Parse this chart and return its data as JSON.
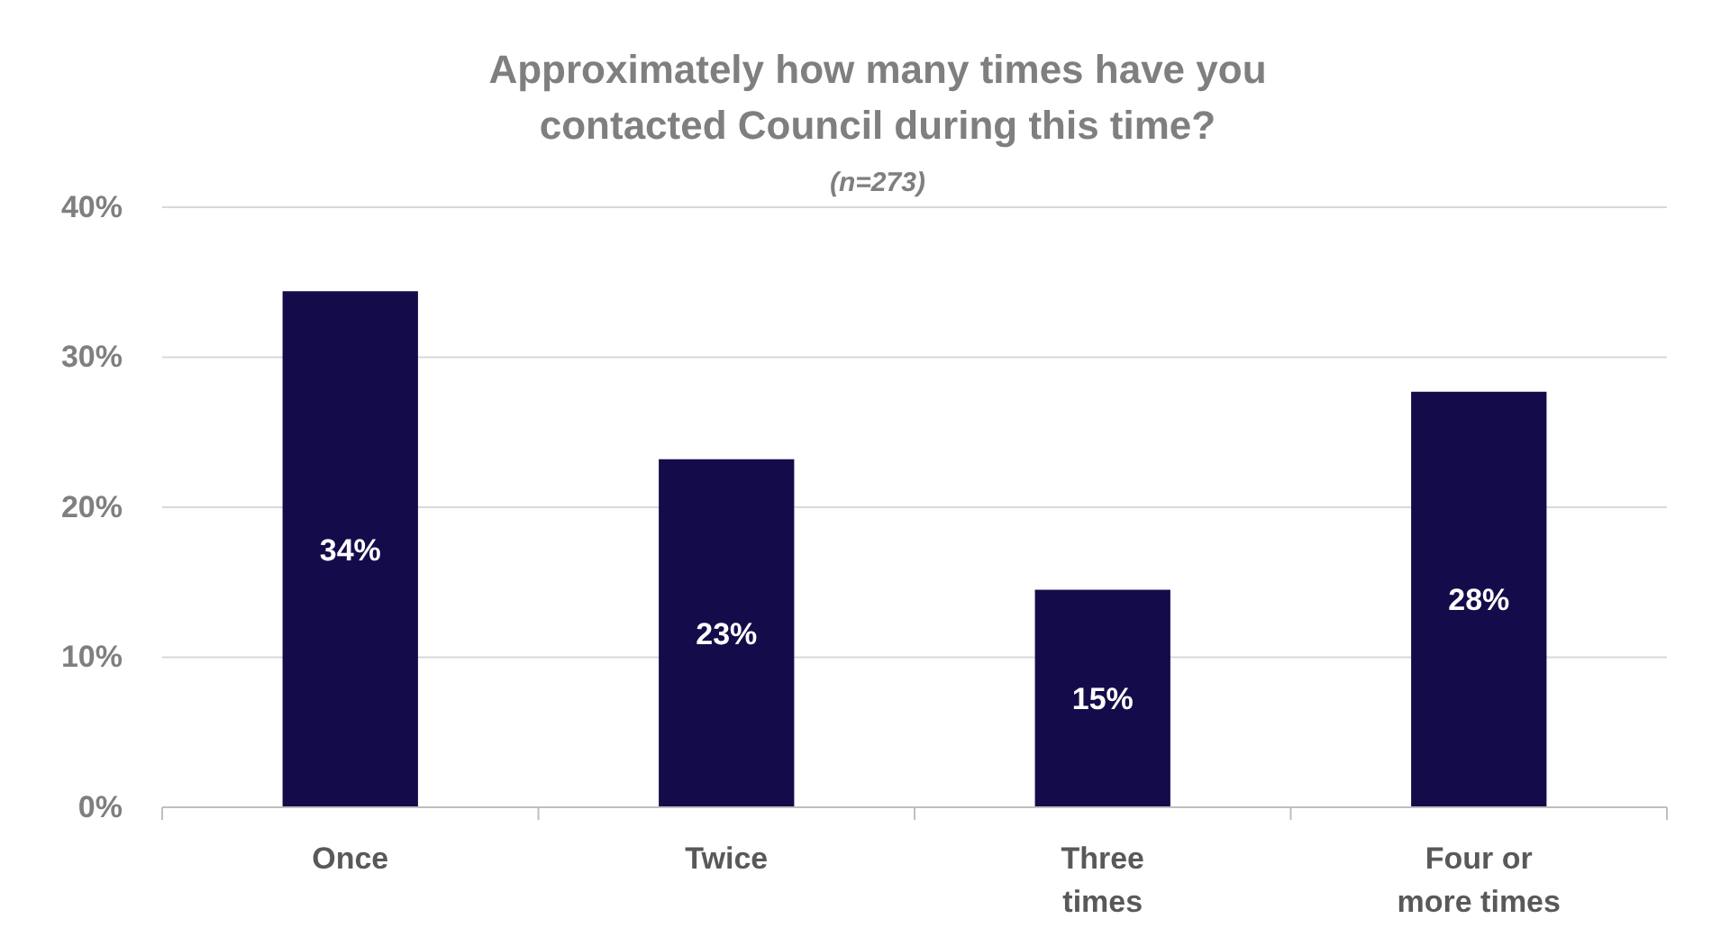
{
  "chart_data": {
    "type": "bar",
    "title": "Approximately how many times have you contacted Council during this time?",
    "subtitle": "(n=273)",
    "categories": [
      "Once",
      "Twice",
      "Three times",
      "Four or more times"
    ],
    "values": [
      34.4,
      23.2,
      14.5,
      27.7
    ],
    "value_labels": [
      "34%",
      "23%",
      "15%",
      "28%"
    ],
    "color": "#140c4a",
    "ylim": [
      0,
      40
    ],
    "yticks": [
      {
        "value": 0,
        "label": "0%"
      },
      {
        "value": 10,
        "label": "10%"
      },
      {
        "value": 20,
        "label": "20%"
      },
      {
        "value": 30,
        "label": "30%"
      },
      {
        "value": 40,
        "label": "40%"
      }
    ],
    "grid": "y"
  }
}
